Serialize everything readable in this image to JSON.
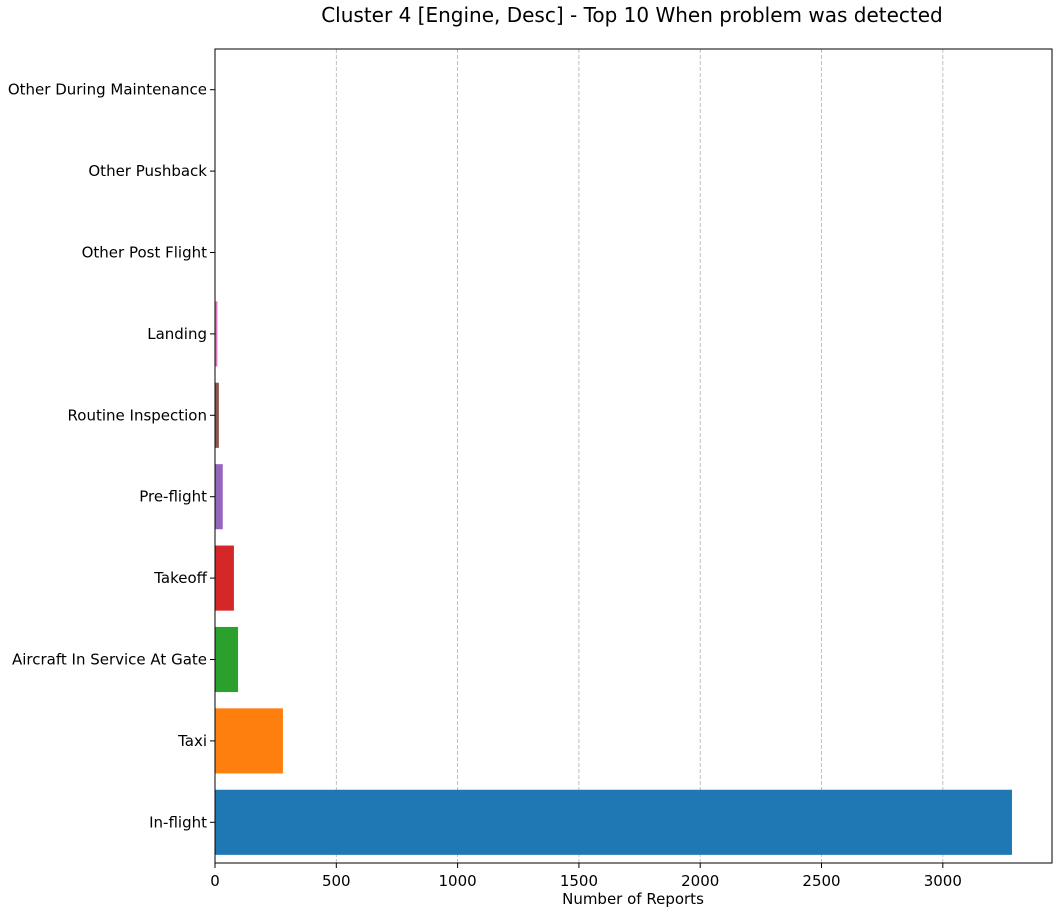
{
  "chart_data": {
    "type": "bar",
    "orientation": "horizontal",
    "title": "Cluster 4 [Engine, Desc] - Top 10 When problem was detected",
    "xlabel": "Number of Reports",
    "ylabel": "",
    "xlim": [
      0,
      3450
    ],
    "xticks": [
      0,
      500,
      1000,
      1500,
      2000,
      2500,
      3000
    ],
    "grid": "x-dashed",
    "categories": [
      "In-flight",
      "Taxi",
      "Aircraft In Service At Gate",
      "Takeoff",
      "Pre-flight",
      "Routine Inspection",
      "Landing",
      "Other Post Flight",
      "Other Pushback",
      "Other During Maintenance"
    ],
    "values": [
      3285,
      280,
      95,
      78,
      32,
      16,
      10,
      2,
      1,
      1
    ],
    "colors": [
      "#1f77b4",
      "#ff7f0e",
      "#2ca02c",
      "#d62728",
      "#9467bd",
      "#8c564b",
      "#e377c2",
      "#7f7f7f",
      "#bcbd22",
      "#17becf"
    ]
  }
}
